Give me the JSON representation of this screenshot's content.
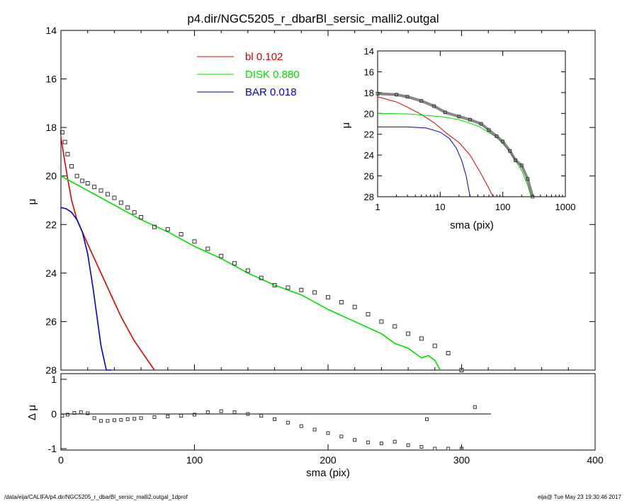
{
  "title": "p4.dir/NGC5205_r_dbarBl_sersic_malli2.outgal",
  "footer": {
    "left": "/data/eija/CALIFA/p4.dir/NGC5205_r_dbarBl_sersic_malli2.outgal_1dprof",
    "right": "eija@  Tue May 23 19:30:46 2017"
  },
  "colors": {
    "bl": "#dd0000",
    "disk": "#00dd00",
    "bar": "#0000cc",
    "data": "#333333"
  },
  "chart_data": [
    {
      "id": "main",
      "type": "line",
      "xlabel": "",
      "ylabel": "μ",
      "xlim": [
        0,
        400
      ],
      "ylim": [
        28,
        14
      ],
      "yticks": [
        "14",
        "16",
        "18",
        "20",
        "22",
        "24",
        "26",
        "28"
      ],
      "legend": [
        {
          "name": "bl",
          "value": "0.102",
          "color": "#dd0000"
        },
        {
          "name": "DISK",
          "value": "0.880",
          "color": "#00dd00"
        },
        {
          "name": "BAR",
          "value": "0.018",
          "color": "#0000cc"
        }
      ],
      "series": [
        {
          "name": "bl",
          "color": "#dd0000",
          "x": [
            0,
            2,
            5,
            8,
            12,
            16,
            20,
            25,
            30,
            35,
            40,
            45,
            50,
            55,
            60,
            65,
            70
          ],
          "y": [
            18.4,
            19.1,
            20.1,
            21.0,
            21.8,
            22.3,
            22.8,
            23.4,
            24.0,
            24.6,
            25.2,
            25.8,
            26.3,
            26.8,
            27.2,
            27.6,
            28.0
          ]
        },
        {
          "name": "DISK",
          "color": "#00dd00",
          "x": [
            0,
            20,
            40,
            60,
            80,
            100,
            120,
            140,
            160,
            180,
            200,
            220,
            240,
            250,
            260,
            270,
            275,
            280,
            284
          ],
          "y": [
            20.0,
            20.6,
            21.2,
            21.8,
            22.3,
            22.9,
            23.4,
            24.0,
            24.5,
            24.9,
            25.5,
            26.0,
            26.5,
            26.9,
            27.1,
            27.5,
            27.4,
            27.6,
            28.0
          ]
        },
        {
          "name": "BAR",
          "color": "#0000cc",
          "x": [
            0,
            4,
            8,
            12,
            16,
            20,
            24,
            27,
            30,
            34,
            38
          ],
          "y": [
            21.3,
            21.35,
            21.5,
            21.8,
            22.3,
            23.2,
            24.6,
            25.8,
            27.0,
            28.0,
            28.0
          ]
        },
        {
          "name": "",
          "color": "#333333",
          "x": [
            1,
            3,
            5,
            8,
            12,
            16,
            20,
            25,
            30,
            35,
            40,
            45,
            50,
            55,
            60,
            70,
            80,
            90,
            100,
            110,
            120,
            130,
            140,
            150,
            160,
            170,
            180,
            190,
            200,
            210,
            220,
            230,
            240,
            250,
            260,
            270,
            280,
            290,
            300
          ],
          "y": [
            18.2,
            18.6,
            19.1,
            19.6,
            20.0,
            20.2,
            20.3,
            20.45,
            20.6,
            20.75,
            20.9,
            21.1,
            21.3,
            21.5,
            21.7,
            22.1,
            22.2,
            22.4,
            22.7,
            23.0,
            23.3,
            23.6,
            23.9,
            24.2,
            24.5,
            24.6,
            24.7,
            24.8,
            25.0,
            25.2,
            25.4,
            25.7,
            26.0,
            26.2,
            26.5,
            26.7,
            27.0,
            27.3,
            28.0
          ]
        }
      ]
    },
    {
      "id": "residual",
      "type": "scatter",
      "xlabel": "sma (pix)",
      "ylabel": "Δ μ",
      "xlim": [
        0,
        400
      ],
      "ylim": [
        -1,
        1
      ],
      "xticks": [
        "0",
        "100",
        "200",
        "300",
        "400"
      ],
      "yticks": [
        "1",
        "0",
        "-1"
      ],
      "x": [
        1,
        5,
        10,
        15,
        20,
        25,
        30,
        35,
        40,
        45,
        50,
        55,
        60,
        70,
        80,
        90,
        100,
        110,
        120,
        130,
        140,
        150,
        160,
        170,
        180,
        190,
        200,
        210,
        220,
        230,
        240,
        250,
        260,
        270,
        274,
        280,
        290,
        300,
        310
      ],
      "y": [
        -0.05,
        -0.02,
        0.03,
        0.05,
        0.02,
        -0.12,
        -0.2,
        -0.2,
        -0.18,
        -0.17,
        -0.15,
        -0.14,
        -0.12,
        -0.09,
        -0.07,
        -0.05,
        -0.02,
        0.05,
        0.08,
        0.05,
        0.0,
        -0.05,
        -0.15,
        -0.25,
        -0.35,
        -0.45,
        -0.55,
        -0.65,
        -0.75,
        -0.82,
        -0.85,
        -0.8,
        -0.9,
        -0.95,
        -0.15,
        -1.0,
        -1.0,
        -1.0,
        0.2
      ]
    },
    {
      "id": "inset",
      "type": "line",
      "xlabel": "sma (pix)",
      "ylabel": "μ",
      "xscale": "log",
      "xlim": [
        1,
        1000
      ],
      "ylim": [
        28,
        14
      ],
      "xticks": [
        "1",
        "10",
        "100",
        "1000"
      ],
      "yticks": [
        "14",
        "16",
        "18",
        "20",
        "22",
        "24",
        "26",
        "28"
      ],
      "series": [
        {
          "name": "bl",
          "color": "#dd0000",
          "x": [
            1,
            2,
            3,
            5,
            8,
            12,
            20,
            30,
            45,
            60,
            70
          ],
          "y": [
            18.4,
            18.9,
            19.4,
            20.1,
            20.9,
            21.8,
            22.8,
            24.0,
            25.8,
            27.2,
            28.0
          ]
        },
        {
          "name": "DISK",
          "color": "#00dd00",
          "x": [
            1,
            3,
            10,
            20,
            40,
            80,
            120,
            160,
            200,
            250,
            284
          ],
          "y": [
            20.0,
            20.05,
            20.3,
            20.6,
            21.2,
            22.3,
            23.4,
            24.5,
            25.5,
            26.9,
            28.0
          ]
        },
        {
          "name": "BAR",
          "color": "#0000cc",
          "x": [
            1,
            3,
            6,
            10,
            14,
            18,
            22,
            26,
            30
          ],
          "y": [
            21.3,
            21.3,
            21.4,
            21.8,
            22.4,
            23.3,
            24.5,
            26.0,
            28.0
          ]
        },
        {
          "name": "",
          "color": "#333333",
          "x": [
            1,
            2,
            3,
            5,
            8,
            12,
            20,
            30,
            45,
            60,
            80,
            100,
            130,
            160,
            200,
            250,
            300
          ],
          "y": [
            18.1,
            18.2,
            18.4,
            18.8,
            19.3,
            19.9,
            20.3,
            20.6,
            21.0,
            21.6,
            22.2,
            22.7,
            23.6,
            24.5,
            25.0,
            26.3,
            28.0
          ]
        }
      ]
    }
  ]
}
